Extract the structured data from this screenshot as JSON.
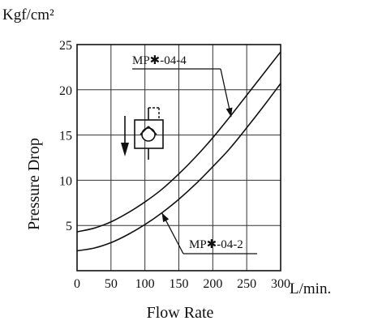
{
  "chart_data": {
    "type": "line",
    "y_unit": "Kgf/cm²",
    "x_unit": "L/min.",
    "xlabel": "Flow Rate",
    "ylabel": "Pressure Drop",
    "xlim": [
      0,
      300
    ],
    "ylim": [
      0,
      25
    ],
    "x_ticks": [
      "0",
      "50",
      "100",
      "150",
      "200",
      "250",
      "300"
    ],
    "y_ticks": [
      "5",
      "10",
      "15",
      "20",
      "25"
    ],
    "grid": true,
    "series": [
      {
        "name": "MP✱-04-4",
        "x": [
          0,
          25,
          50,
          75,
          100,
          125,
          150,
          175,
          200,
          225,
          250,
          275,
          300
        ],
        "y": [
          4.3,
          4.7,
          5.4,
          6.4,
          7.6,
          9.0,
          10.7,
          12.6,
          14.7,
          17.0,
          19.4,
          21.8,
          24.2
        ]
      },
      {
        "name": "MP✱-04-2",
        "x": [
          0,
          25,
          50,
          75,
          100,
          125,
          150,
          175,
          200,
          225,
          250,
          275,
          300
        ],
        "y": [
          2.2,
          2.5,
          3.1,
          4.0,
          5.1,
          6.4,
          7.9,
          9.6,
          11.5,
          13.5,
          15.8,
          18.2,
          20.7
        ]
      }
    ],
    "annotations": [
      {
        "label": "MP✱-04-4",
        "series": 0,
        "point_x": 227,
        "point_y": 17.0
      },
      {
        "label": "MP✱-04-2",
        "series": 1,
        "point_x": 125,
        "point_y": 6.4
      }
    ]
  }
}
